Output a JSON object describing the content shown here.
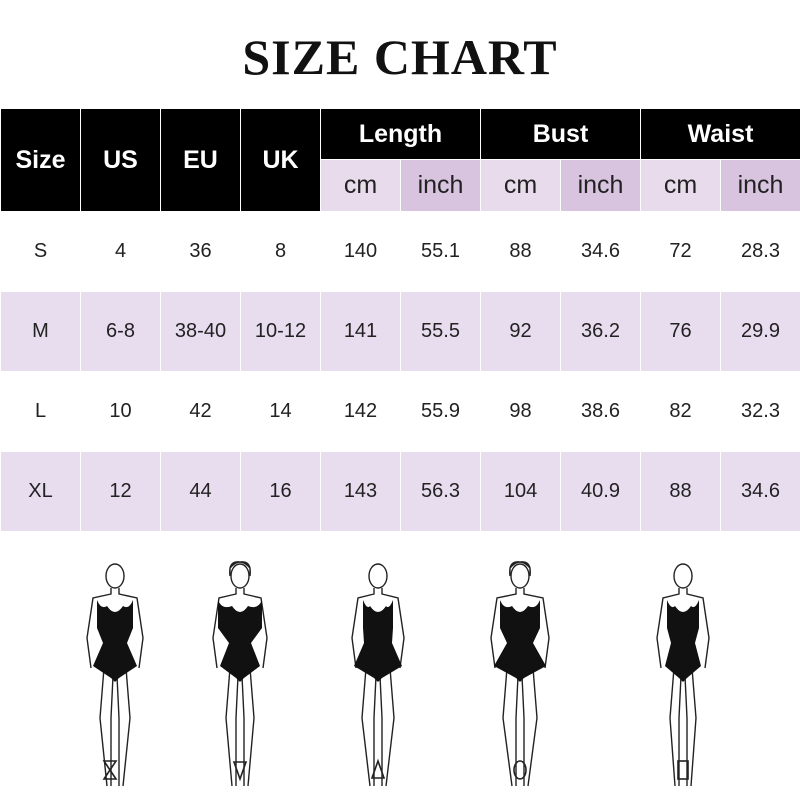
{
  "title": "SIZE CHART",
  "table": {
    "headers": {
      "size": "Size",
      "us": "US",
      "eu": "EU",
      "uk": "UK",
      "length": "Length",
      "bust": "Bust",
      "waist": "Waist",
      "cm": "cm",
      "inch": "inch"
    },
    "rows": [
      [
        "S",
        "4",
        "36",
        "8",
        "140",
        "55.1",
        "88",
        "34.6",
        "72",
        "28.3"
      ],
      [
        "M",
        "6-8",
        "38-40",
        "10-12",
        "141",
        "55.5",
        "92",
        "36.2",
        "76",
        "29.9"
      ],
      [
        "L",
        "10",
        "42",
        "14",
        "142",
        "55.9",
        "98",
        "38.6",
        "82",
        "32.3"
      ],
      [
        "XL",
        "12",
        "44",
        "16",
        "143",
        "56.3",
        "104",
        "40.9",
        "88",
        "34.6"
      ]
    ]
  },
  "body_shapes": [
    {
      "icon": "hourglass-icon"
    },
    {
      "icon": "inverted-triangle-icon"
    },
    {
      "icon": "triangle-icon"
    },
    {
      "icon": "oval-icon"
    },
    {
      "icon": "rectangle-icon"
    }
  ],
  "colors": {
    "header": "#000000",
    "cm": "#e8dcec",
    "inch": "#d8c4df",
    "alt_row": "#e8dcef"
  }
}
